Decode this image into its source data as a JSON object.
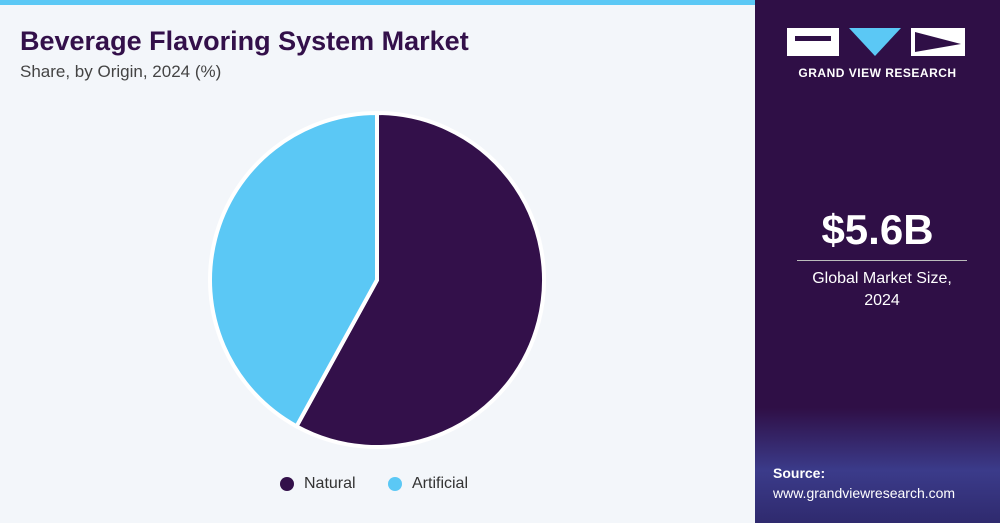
{
  "chart_data": {
    "type": "pie",
    "title": "Beverage Flavoring System Market",
    "subtitle": "Share, by Origin, 2024 (%)",
    "categories": [
      "Natural",
      "Artificial"
    ],
    "values": [
      58,
      42
    ],
    "colors": [
      "#33104a",
      "#5bc8f5"
    ],
    "legend": "bottom"
  },
  "sidebar": {
    "brand": "GRAND VIEW RESEARCH",
    "market_value": "$5.6B",
    "market_label": "Global Market Size, 2024",
    "source_label": "Source:",
    "source_url": "www.grandviewresearch.com"
  }
}
